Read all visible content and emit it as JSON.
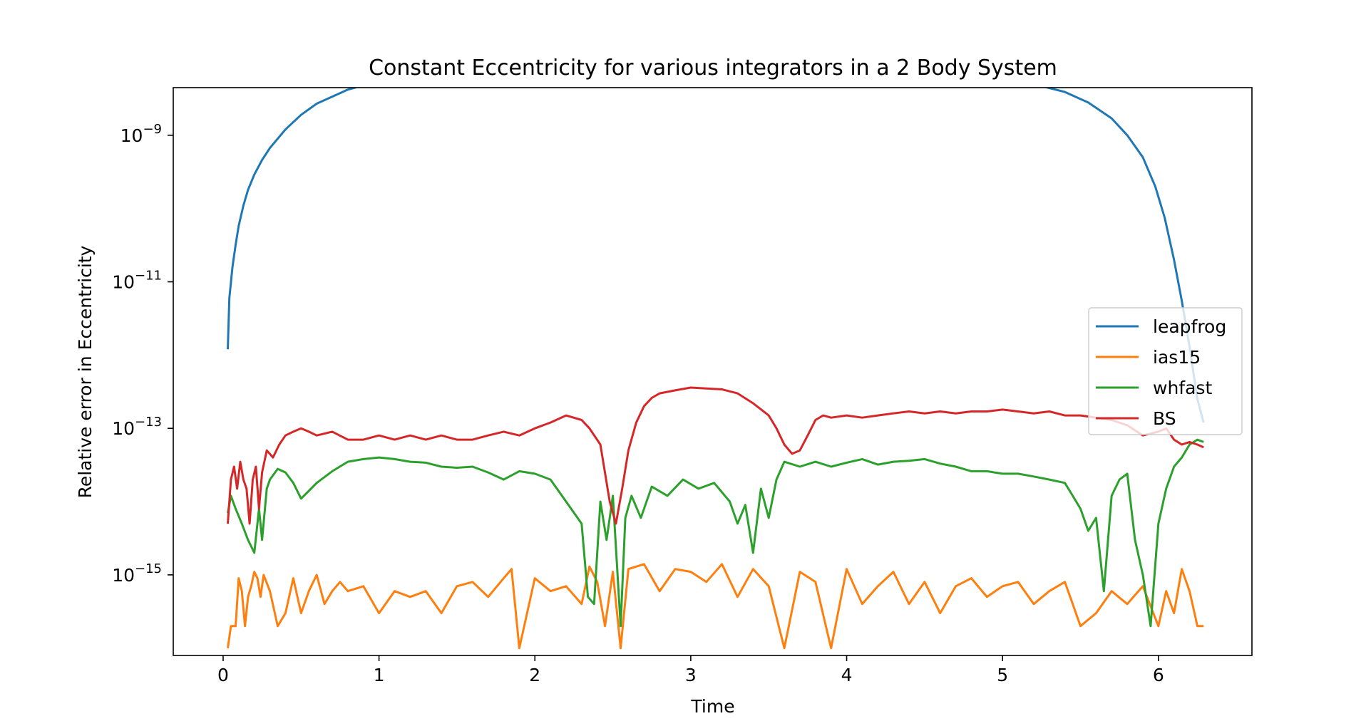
{
  "chart_data": {
    "type": "line",
    "title": "Constant Eccentricity for various integrators in a 2 Body System",
    "xlabel": "Time",
    "ylabel": "Relative error in Eccentricity",
    "xlim": [
      -0.32,
      6.6
    ],
    "ylim_log10": [
      -16.1,
      -8.35
    ],
    "yscale": "log",
    "grid": false,
    "legend_position": "center-right",
    "xticks": [
      0,
      1,
      2,
      3,
      4,
      5,
      6
    ],
    "yticks_exp": [
      -15,
      -13,
      -11,
      -9
    ],
    "series": [
      {
        "name": "leapfrog",
        "color": "#1f77b4",
        "x": [
          0.03,
          0.04,
          0.06,
          0.08,
          0.1,
          0.13,
          0.16,
          0.2,
          0.25,
          0.3,
          0.4,
          0.5,
          0.6,
          0.8,
          1.0,
          1.2,
          1.5,
          1.8,
          2.2,
          2.6,
          3.0,
          3.14,
          3.4,
          3.8,
          4.2,
          4.6,
          4.9,
          5.2,
          5.4,
          5.55,
          5.7,
          5.8,
          5.9,
          5.98,
          6.04,
          6.1,
          6.15,
          6.2,
          6.25,
          6.29
        ],
        "y": [
          1.2e-12,
          6e-12,
          1.6e-11,
          3.2e-11,
          5.8e-11,
          1.1e-10,
          1.8e-10,
          2.9e-10,
          4.6e-10,
          6.7e-10,
          1.2e-09,
          1.9e-09,
          2.7e-09,
          4.2e-09,
          5.5e-09,
          6.5e-09,
          7.5e-09,
          8.2e-09,
          8.7e-09,
          9e-09,
          9.1e-09,
          9.1e-09,
          9e-09,
          8.6e-09,
          8e-09,
          7.2e-09,
          6.3e-09,
          5e-09,
          3.9e-09,
          2.8e-09,
          1.7e-09,
          1e-09,
          5e-10,
          2e-10,
          7.5e-11,
          2e-11,
          5.5e-12,
          1.3e-12,
          2.5e-13,
          1.2e-13
        ]
      },
      {
        "name": "ias15",
        "color": "#ff7f0e",
        "x": [
          0.03,
          0.05,
          0.08,
          0.1,
          0.12,
          0.14,
          0.16,
          0.18,
          0.2,
          0.22,
          0.24,
          0.26,
          0.3,
          0.35,
          0.4,
          0.45,
          0.5,
          0.55,
          0.6,
          0.65,
          0.7,
          0.75,
          0.8,
          0.9,
          1.0,
          1.1,
          1.2,
          1.3,
          1.4,
          1.5,
          1.6,
          1.7,
          1.8,
          1.85,
          1.9,
          2.0,
          2.1,
          2.2,
          2.3,
          2.35,
          2.4,
          2.45,
          2.5,
          2.55,
          2.6,
          2.7,
          2.8,
          2.9,
          3.0,
          3.1,
          3.2,
          3.3,
          3.4,
          3.5,
          3.6,
          3.7,
          3.8,
          3.9,
          4.0,
          4.1,
          4.2,
          4.3,
          4.4,
          4.5,
          4.6,
          4.7,
          4.8,
          4.9,
          5.0,
          5.1,
          5.2,
          5.3,
          5.4,
          5.45,
          5.5,
          5.6,
          5.7,
          5.8,
          5.9,
          6.0,
          6.05,
          6.1,
          6.15,
          6.2,
          6.25,
          6.29
        ],
        "y": [
          1e-16,
          2e-16,
          2e-16,
          9e-16,
          6e-16,
          2e-16,
          5e-16,
          7e-16,
          1.1e-15,
          9e-16,
          5e-16,
          1e-15,
          6e-16,
          2e-16,
          3e-16,
          9e-16,
          3e-16,
          6e-16,
          1e-15,
          4e-16,
          6e-16,
          8e-16,
          6e-16,
          7e-16,
          3e-16,
          6e-16,
          5e-16,
          6e-16,
          3e-16,
          7e-16,
          8e-16,
          5e-16,
          9e-16,
          1.2e-15,
          1e-16,
          9e-16,
          6e-16,
          7e-16,
          4e-16,
          1.3e-15,
          8e-16,
          2e-16,
          1.1e-15,
          1e-16,
          1.2e-15,
          1.4e-15,
          6e-16,
          1.2e-15,
          1.1e-15,
          8e-16,
          1.4e-15,
          5e-16,
          1.2e-15,
          7e-16,
          1e-16,
          1.1e-15,
          8e-16,
          1e-16,
          1.2e-15,
          4e-16,
          7e-16,
          1.1e-15,
          4e-16,
          8e-16,
          3e-16,
          7e-16,
          9e-16,
          5e-16,
          7e-16,
          8e-16,
          4e-16,
          6e-16,
          8e-16,
          4e-16,
          2e-16,
          3e-16,
          6e-16,
          4e-16,
          7e-16,
          2e-16,
          6e-16,
          3e-16,
          1.2e-15,
          6e-16,
          2e-16,
          2e-16
        ]
      },
      {
        "name": "whfast",
        "color": "#2ca02c",
        "x": [
          0.03,
          0.05,
          0.08,
          0.12,
          0.16,
          0.2,
          0.23,
          0.25,
          0.28,
          0.3,
          0.35,
          0.4,
          0.45,
          0.5,
          0.55,
          0.6,
          0.7,
          0.8,
          0.9,
          1.0,
          1.1,
          1.2,
          1.3,
          1.4,
          1.5,
          1.6,
          1.7,
          1.8,
          1.9,
          2.0,
          2.1,
          2.2,
          2.3,
          2.34,
          2.38,
          2.42,
          2.46,
          2.5,
          2.55,
          2.58,
          2.62,
          2.68,
          2.75,
          2.85,
          2.95,
          3.05,
          3.15,
          3.25,
          3.3,
          3.35,
          3.4,
          3.45,
          3.5,
          3.55,
          3.6,
          3.7,
          3.8,
          3.9,
          4.0,
          4.1,
          4.2,
          4.3,
          4.4,
          4.5,
          4.6,
          4.7,
          4.8,
          4.9,
          5.0,
          5.1,
          5.2,
          5.3,
          5.4,
          5.45,
          5.5,
          5.55,
          5.6,
          5.65,
          5.7,
          5.75,
          5.8,
          5.85,
          5.9,
          5.95,
          6.0,
          6.05,
          6.1,
          6.15,
          6.2,
          6.25,
          6.29
        ],
        "y": [
          7e-15,
          1.2e-14,
          8e-15,
          5e-15,
          3e-15,
          2e-15,
          8e-15,
          3e-15,
          1.5e-14,
          2e-14,
          2.8e-14,
          2.5e-14,
          1.8e-14,
          1.1e-14,
          1.4e-14,
          1.8e-14,
          2.6e-14,
          3.5e-14,
          3.8e-14,
          4e-14,
          3.8e-14,
          3.5e-14,
          3.4e-14,
          3e-14,
          2.9e-14,
          3e-14,
          2.5e-14,
          2e-14,
          2.6e-14,
          2.4e-14,
          2e-14,
          1e-14,
          5e-15,
          5e-16,
          4e-16,
          1e-14,
          3e-15,
          1.2e-14,
          2e-16,
          6e-15,
          1.2e-14,
          6e-15,
          1.6e-14,
          1.2e-14,
          2e-14,
          1.5e-14,
          1.8e-14,
          1e-14,
          5e-15,
          9e-15,
          2e-15,
          1.5e-14,
          6e-15,
          2e-14,
          3.5e-14,
          3e-14,
          3.5e-14,
          3e-14,
          3.4e-14,
          3.8e-14,
          3.2e-14,
          3.5e-14,
          3.6e-14,
          3.8e-14,
          3.3e-14,
          3e-14,
          2.6e-14,
          2.6e-14,
          2.4e-14,
          2.4e-14,
          2.2e-14,
          2e-14,
          1.8e-14,
          1.2e-14,
          8e-15,
          4e-15,
          6e-15,
          6e-16,
          1.2e-14,
          2e-14,
          2.4e-14,
          3e-15,
          1e-15,
          2e-16,
          5e-15,
          1.5e-14,
          3e-14,
          4e-14,
          6e-14,
          7e-14,
          6.5e-14
        ]
      },
      {
        "name": "BS",
        "color": "#d62728",
        "x": [
          0.03,
          0.05,
          0.07,
          0.09,
          0.11,
          0.13,
          0.15,
          0.17,
          0.19,
          0.21,
          0.23,
          0.25,
          0.28,
          0.32,
          0.36,
          0.4,
          0.45,
          0.5,
          0.55,
          0.6,
          0.7,
          0.8,
          0.9,
          1.0,
          1.1,
          1.2,
          1.3,
          1.4,
          1.5,
          1.6,
          1.7,
          1.8,
          1.9,
          2.0,
          2.1,
          2.2,
          2.3,
          2.35,
          2.42,
          2.48,
          2.52,
          2.56,
          2.6,
          2.65,
          2.7,
          2.75,
          2.8,
          2.9,
          3.0,
          3.1,
          3.2,
          3.3,
          3.4,
          3.5,
          3.55,
          3.6,
          3.65,
          3.7,
          3.75,
          3.8,
          3.85,
          3.9,
          4.0,
          4.1,
          4.2,
          4.3,
          4.4,
          4.5,
          4.6,
          4.7,
          4.8,
          4.9,
          5.0,
          5.1,
          5.2,
          5.3,
          5.4,
          5.5,
          5.6,
          5.7,
          5.8,
          5.9,
          6.0,
          6.05,
          6.1,
          6.15,
          6.2,
          6.25,
          6.29
        ],
        "y": [
          5e-15,
          2e-14,
          3e-14,
          1.5e-14,
          3.5e-14,
          2e-14,
          1.5e-14,
          5e-15,
          2e-14,
          3e-14,
          8e-15,
          2.5e-14,
          5e-14,
          4e-14,
          6e-14,
          8e-14,
          9e-14,
          1e-13,
          9e-14,
          8e-14,
          9e-14,
          7e-14,
          7e-14,
          8e-14,
          7e-14,
          8e-14,
          7e-14,
          8e-14,
          7e-14,
          7e-14,
          8e-14,
          9e-14,
          8e-14,
          1e-13,
          1.2e-13,
          1.5e-13,
          1.3e-13,
          1e-13,
          6e-14,
          1e-14,
          5e-15,
          1.5e-14,
          5e-14,
          1.2e-13,
          2e-13,
          2.6e-13,
          3e-13,
          3.3e-13,
          3.6e-13,
          3.5e-13,
          3.4e-13,
          3e-13,
          2.2e-13,
          1.5e-13,
          1e-13,
          6e-14,
          4.5e-14,
          5e-14,
          8e-14,
          1.3e-13,
          1.5e-13,
          1.4e-13,
          1.5e-13,
          1.4e-13,
          1.5e-13,
          1.6e-13,
          1.7e-13,
          1.6e-13,
          1.7e-13,
          1.6e-13,
          1.7e-13,
          1.7e-13,
          1.8e-13,
          1.7e-13,
          1.6e-13,
          1.7e-13,
          1.5e-13,
          1.5e-13,
          1.4e-13,
          1.3e-13,
          1.1e-13,
          8e-14,
          9e-14,
          1e-13,
          7e-14,
          6e-14,
          6.5e-14,
          6e-14,
          5.5e-14
        ]
      }
    ]
  }
}
